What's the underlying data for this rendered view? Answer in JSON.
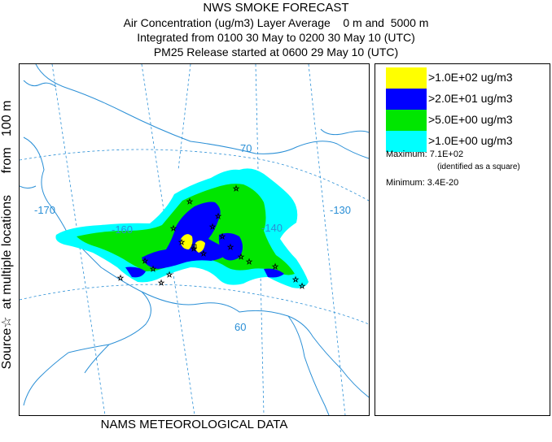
{
  "header": {
    "title": "NWS SMOKE FORECAST",
    "line1": "Air Concentration (ug/m3) Layer Average    0 m and  5000 m",
    "line2": "Integrated from 0100 30 May to 0200 30 May 10 (UTC)",
    "line3": "PM25 Release started at 0600 29 May 10 (UTC)"
  },
  "side_label": {
    "prefix": "Source",
    "symbol": "☆",
    "suffix": "  at multiple locations      from   100 m"
  },
  "footer": {
    "text": "NAMS METEOROLOGICAL DATA"
  },
  "map": {
    "labels": {
      "lon_170": "-170",
      "lon_160": "-160",
      "lon_140": "-140",
      "lon_130": "-130",
      "lat_70": "70",
      "lat_60": "60"
    },
    "colors": {
      "ocean": "#ffffff",
      "coast": "#2a8fd6",
      "graticule": "#2a8fd6"
    }
  },
  "legend": {
    "items": [
      {
        "label": ">1.0E+02 ug/m3",
        "color": "#ffff00"
      },
      {
        "label": ">2.0E+01 ug/m3",
        "color": "#0000ff"
      },
      {
        "label": ">5.0E+00 ug/m3",
        "color": "#00e600"
      },
      {
        "label": ">1.0E+00 ug/m3",
        "color": "#00ffff"
      }
    ],
    "maximum": "Maximum: 7.1E+02",
    "maximum_note": "(identified as a square)",
    "minimum": "Minimum: 3.4E-20"
  }
}
